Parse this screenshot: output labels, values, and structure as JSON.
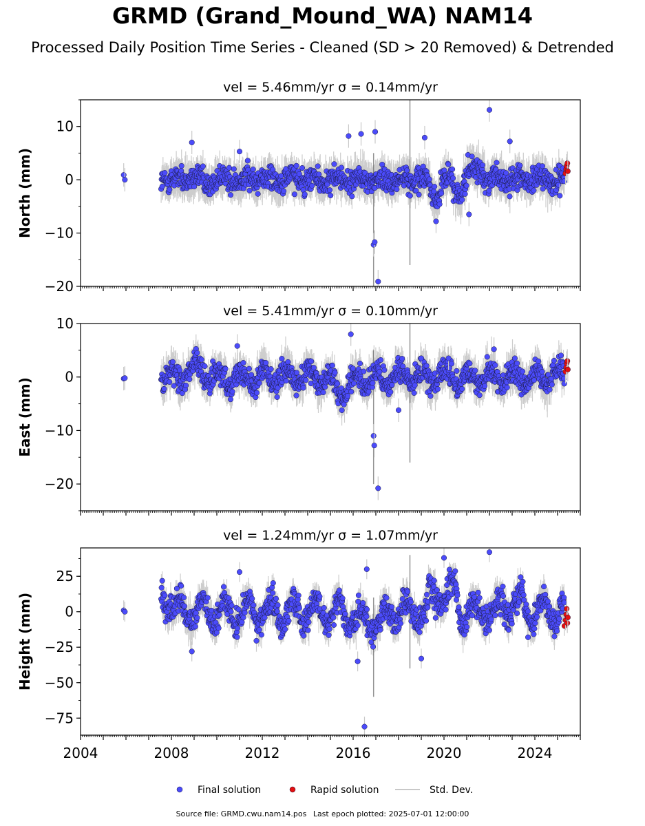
{
  "title": "GRMD (Grand_Mound_WA) NAM14",
  "subtitle": "Processed Daily Position Time Series - Cleaned (SD > 20 Removed) & Detrended",
  "footer": {
    "source": "Source file: GRMD.cwu.nam14.pos",
    "last_epoch": "Last epoch plotted: 2025-07-01 12:00:00"
  },
  "legend": {
    "final": "Final solution",
    "rapid": "Rapid solution",
    "std": "Std. Dev."
  },
  "colors": {
    "final": "#4b4bfa",
    "rapid": "#e41010",
    "std": "#c8c8c8"
  },
  "chart_data": [
    {
      "type": "scatter",
      "title": "vel = 5.46mm/yr   σ = 0.14mm/yr",
      "ylabel": "North (mm)",
      "xlim": [
        2004,
        2026
      ],
      "ylim": [
        -20,
        15
      ],
      "yticks": [
        -20,
        -10,
        0,
        10
      ],
      "ytick_labels": [
        "−20",
        "−10",
        "0",
        "10"
      ],
      "xticks": [
        2004,
        2008,
        2012,
        2016,
        2020,
        2024
      ],
      "grid": false,
      "series": [
        {
          "name": "Final solution",
          "points": [
            [
              2005.9,
              0.9
            ],
            [
              2005.95,
              0.0
            ],
            [
              2008.9,
              7.0
            ],
            [
              2011.0,
              5.3
            ],
            [
              2015.8,
              8.2
            ],
            [
              2016.35,
              8.6
            ],
            [
              2016.9,
              -12.2
            ],
            [
              2016.95,
              -11.7
            ],
            [
              2016.97,
              9.0
            ],
            [
              2017.1,
              -19.1
            ],
            [
              2019.15,
              7.9
            ],
            [
              2019.65,
              -7.8
            ],
            [
              2021.1,
              -6.5
            ],
            [
              2022.0,
              13.1
            ],
            [
              2022.9,
              7.2
            ],
            [
              2025.1,
              -3.0
            ]
          ]
        },
        {
          "name": "Rapid solution",
          "points": [
            [
              2025.35,
              1.2
            ],
            [
              2025.38,
              2.0
            ],
            [
              2025.4,
              2.6
            ],
            [
              2025.43,
              3.1
            ],
            [
              2025.45,
              1.6
            ]
          ]
        }
      ]
    },
    {
      "type": "scatter",
      "title": "vel = 5.41mm/yr   σ = 0.10mm/yr",
      "ylabel": "East (mm)",
      "xlim": [
        2004,
        2026
      ],
      "ylim": [
        -25,
        10
      ],
      "yticks": [
        -20,
        -10,
        0,
        10
      ],
      "ytick_labels": [
        "−20",
        "−10",
        "0",
        "10"
      ],
      "xticks": [
        2004,
        2008,
        2012,
        2016,
        2020,
        2024
      ],
      "grid": false,
      "series": [
        {
          "name": "Final solution",
          "points": [
            [
              2005.9,
              -0.3
            ],
            [
              2005.95,
              -0.2
            ],
            [
              2010.9,
              5.8
            ],
            [
              2015.9,
              8.0
            ],
            [
              2016.9,
              -11.0
            ],
            [
              2016.93,
              -12.8
            ],
            [
              2017.1,
              -20.8
            ],
            [
              2018.0,
              -6.2
            ],
            [
              2019.0,
              3.5
            ],
            [
              2020.2,
              3.5
            ],
            [
              2022.2,
              5.2
            ]
          ]
        },
        {
          "name": "Rapid solution",
          "points": [
            [
              2025.35,
              1.0
            ],
            [
              2025.38,
              1.8
            ],
            [
              2025.4,
              2.6
            ],
            [
              2025.43,
              3.0
            ],
            [
              2025.45,
              1.4
            ]
          ]
        }
      ]
    },
    {
      "type": "scatter",
      "title": "vel = 1.24mm/yr   σ = 1.07mm/yr",
      "ylabel": "Height (mm)",
      "xlim": [
        2004,
        2026
      ],
      "ylim": [
        -87,
        45
      ],
      "yticks": [
        -75,
        -50,
        -25,
        0,
        25
      ],
      "ytick_labels": [
        "−75",
        "−50",
        "−25",
        "0",
        "25"
      ],
      "xticks": [
        2004,
        2008,
        2012,
        2016,
        2020,
        2024
      ],
      "xtick_labels": [
        "2004",
        "2008",
        "2012",
        "2016",
        "2020",
        "2024"
      ],
      "grid": false,
      "series": [
        {
          "name": "Final solution",
          "points": [
            [
              2005.9,
              1.0
            ],
            [
              2005.95,
              0.0
            ],
            [
              2008.9,
              -28.0
            ],
            [
              2011.0,
              28.0
            ],
            [
              2016.5,
              -81.0
            ],
            [
              2016.2,
              -35.0
            ],
            [
              2016.6,
              30.0
            ],
            [
              2022.0,
              42.0
            ],
            [
              2019.0,
              -33.0
            ],
            [
              2020.0,
              38.0
            ],
            [
              2023.7,
              -18.0
            ]
          ]
        },
        {
          "name": "Rapid solution",
          "points": [
            [
              2025.3,
              -10.0
            ],
            [
              2025.35,
              -6.0
            ],
            [
              2025.38,
              -2.0
            ],
            [
              2025.4,
              2.0
            ],
            [
              2025.43,
              -8.0
            ],
            [
              2025.45,
              -4.0
            ]
          ]
        }
      ]
    }
  ]
}
